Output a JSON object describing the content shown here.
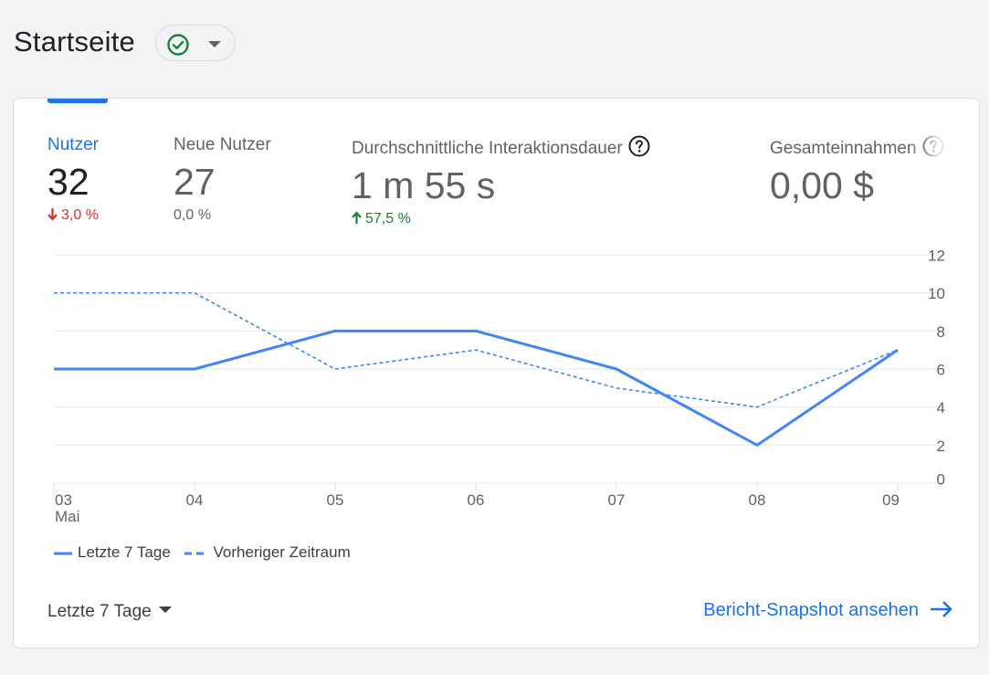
{
  "page": {
    "title": "Startseite"
  },
  "status": {
    "icon": "check-circle-icon",
    "color": "#188038"
  },
  "metrics": [
    {
      "label": "Nutzer",
      "value": "32",
      "change": "3,0 %",
      "direction": "down",
      "active": true
    },
    {
      "label": "Neue Nutzer",
      "value": "27",
      "change": "0,0 %",
      "direction": "neutral",
      "active": false
    },
    {
      "label": "Durchschnittliche Interaktionsdauer",
      "value": "1 m 55 s",
      "change": "57,5 %",
      "direction": "up",
      "active": false,
      "help": true
    },
    {
      "label": "Gesamteinnahmen",
      "value": "0,00 $",
      "active": false,
      "help": true
    }
  ],
  "chart_data": {
    "type": "line",
    "categories": [
      "03",
      "04",
      "05",
      "06",
      "07",
      "08",
      "09"
    ],
    "x_sublabel": "Mai",
    "series": [
      {
        "name": "Letzte 7 Tage",
        "values": [
          6,
          6,
          8,
          8,
          6,
          2,
          7
        ],
        "style": "solid",
        "color": "#4285f4"
      },
      {
        "name": "Vorheriger Zeitraum",
        "values": [
          10,
          10,
          6,
          7,
          5,
          4,
          7
        ],
        "style": "dashed",
        "color": "#4285f4"
      }
    ],
    "y_ticks": [
      "0",
      "2",
      "4",
      "6",
      "8",
      "10",
      "12"
    ],
    "ylim": [
      0,
      12
    ],
    "grid": true,
    "legend": "bottom-left"
  },
  "footer": {
    "range_label": "Letzte 7 Tage",
    "link_label": "Bericht-Snapshot ansehen"
  },
  "colors": {
    "accent": "#1a73e8",
    "down": "#d93025",
    "up": "#188038"
  }
}
